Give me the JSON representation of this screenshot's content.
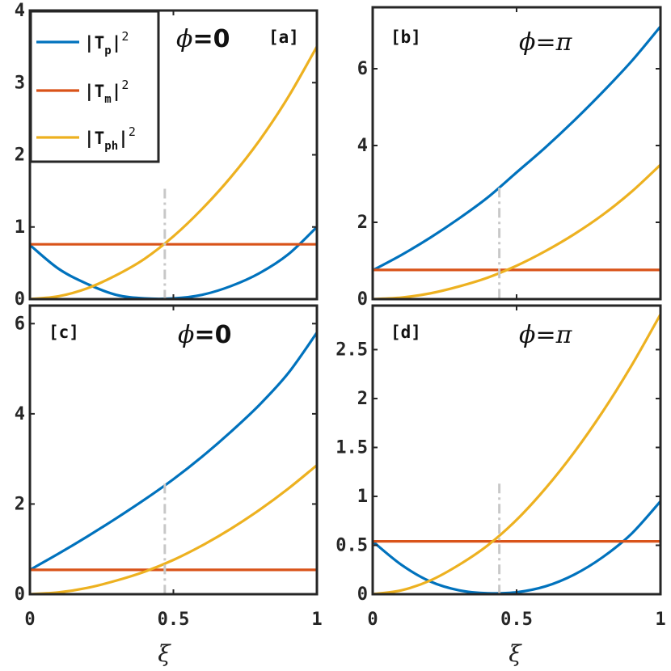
{
  "colors": {
    "Tp": "#0072BD",
    "Tm": "#D95319",
    "Tph": "#EDB120",
    "guide": "#c8c8c8",
    "axis": "#262626"
  },
  "legend": {
    "entries": [
      {
        "base": "|T",
        "sub": "p",
        "sup": "2",
        "color": "#0072BD"
      },
      {
        "base": "|T",
        "sub": "m",
        "sup": "2",
        "color": "#D95319"
      },
      {
        "base": "|T",
        "sub": "ph",
        "sup": "2",
        "color": "#EDB120"
      }
    ]
  },
  "xlabel": "ξ",
  "chart_data": [
    {
      "type": "line",
      "label": "[a]",
      "phi_symbol": "ϕ",
      "phi_value": "=0",
      "xlim": [
        0,
        1
      ],
      "ylim": [
        0,
        4
      ],
      "xticks": [],
      "yticks": [
        "0",
        "1",
        "2",
        "3",
        "4"
      ],
      "ytick_values": [
        0,
        1,
        2,
        3,
        4
      ],
      "guide_x": 0.47,
      "guide_ytop": 1.53,
      "x": [
        0,
        0.1,
        0.2,
        0.3,
        0.4,
        0.5,
        0.6,
        0.7,
        0.8,
        0.9,
        1.0
      ],
      "series": [
        {
          "key": "Tp",
          "values": [
            0.75,
            0.42,
            0.21,
            0.06,
            0.01,
            0.01,
            0.06,
            0.18,
            0.36,
            0.62,
            1.0
          ]
        },
        {
          "key": "Tm",
          "values": [
            0.76,
            0.76,
            0.76,
            0.76,
            0.76,
            0.76,
            0.76,
            0.76,
            0.76,
            0.76,
            0.76
          ]
        },
        {
          "key": "Tph",
          "values": [
            0.0,
            0.04,
            0.15,
            0.33,
            0.56,
            0.87,
            1.25,
            1.69,
            2.2,
            2.8,
            3.5
          ]
        }
      ]
    },
    {
      "type": "line",
      "label": "[b]",
      "phi_symbol": "ϕ",
      "phi_value": "=π",
      "xlim": [
        0,
        1
      ],
      "ylim": [
        0,
        7.6
      ],
      "xticks": [],
      "yticks": [
        "0",
        "2",
        "4",
        "6"
      ],
      "ytick_values": [
        0,
        2,
        4,
        6
      ],
      "guide_x": 0.44,
      "guide_ytop": 2.9,
      "x": [
        0,
        0.1,
        0.2,
        0.3,
        0.4,
        0.5,
        0.6,
        0.7,
        0.8,
        0.9,
        1.0
      ],
      "series": [
        {
          "key": "Tp",
          "values": [
            0.75,
            1.15,
            1.6,
            2.1,
            2.65,
            3.3,
            3.95,
            4.65,
            5.4,
            6.2,
            7.1
          ]
        },
        {
          "key": "Tm",
          "values": [
            0.76,
            0.76,
            0.76,
            0.76,
            0.76,
            0.76,
            0.76,
            0.76,
            0.76,
            0.76,
            0.76
          ]
        },
        {
          "key": "Tph",
          "values": [
            0.0,
            0.04,
            0.15,
            0.33,
            0.56,
            0.87,
            1.25,
            1.69,
            2.2,
            2.8,
            3.5
          ]
        }
      ]
    },
    {
      "type": "line",
      "label": "[c]",
      "phi_symbol": "ϕ",
      "phi_value": "=0",
      "xlim": [
        0,
        1
      ],
      "ylim": [
        0,
        6.4
      ],
      "xticks": [
        "0",
        "0.5",
        "1"
      ],
      "xtick_values": [
        0,
        0.5,
        1
      ],
      "yticks": [
        "0",
        "2",
        "4",
        "6"
      ],
      "ytick_values": [
        0,
        2,
        4,
        6
      ],
      "guide_x": 0.47,
      "guide_ytop": 2.45,
      "x": [
        0,
        0.1,
        0.2,
        0.3,
        0.4,
        0.5,
        0.6,
        0.7,
        0.8,
        0.9,
        1.0
      ],
      "series": [
        {
          "key": "Tp",
          "values": [
            0.54,
            0.9,
            1.28,
            1.68,
            2.1,
            2.55,
            3.05,
            3.6,
            4.2,
            4.9,
            5.8
          ]
        },
        {
          "key": "Tm",
          "values": [
            0.54,
            0.54,
            0.54,
            0.54,
            0.54,
            0.54,
            0.54,
            0.54,
            0.54,
            0.54,
            0.54
          ]
        },
        {
          "key": "Tph",
          "values": [
            0.0,
            0.04,
            0.14,
            0.3,
            0.5,
            0.76,
            1.08,
            1.45,
            1.87,
            2.34,
            2.86
          ]
        }
      ]
    },
    {
      "type": "line",
      "label": "[d]",
      "phi_symbol": "ϕ",
      "phi_value": "=π",
      "xlim": [
        0,
        1
      ],
      "ylim": [
        0,
        2.95
      ],
      "xticks": [
        "0",
        "0.5",
        "1"
      ],
      "xtick_values": [
        0,
        0.5,
        1
      ],
      "yticks": [
        "0",
        "0.5",
        "1",
        "1.5",
        "2",
        "2.5"
      ],
      "ytick_values": [
        0,
        0.5,
        1,
        1.5,
        2,
        2.5
      ],
      "guide_x": 0.44,
      "guide_ytop": 1.13,
      "x": [
        0,
        0.1,
        0.2,
        0.3,
        0.4,
        0.5,
        0.6,
        0.7,
        0.8,
        0.9,
        1.0
      ],
      "series": [
        {
          "key": "Tp",
          "values": [
            0.54,
            0.3,
            0.13,
            0.04,
            0.01,
            0.02,
            0.08,
            0.2,
            0.38,
            0.62,
            0.95
          ]
        },
        {
          "key": "Tm",
          "values": [
            0.54,
            0.54,
            0.54,
            0.54,
            0.54,
            0.54,
            0.54,
            0.54,
            0.54,
            0.54,
            0.54
          ]
        },
        {
          "key": "Tph",
          "values": [
            0.0,
            0.04,
            0.14,
            0.3,
            0.5,
            0.76,
            1.08,
            1.45,
            1.87,
            2.34,
            2.86
          ]
        }
      ]
    }
  ]
}
